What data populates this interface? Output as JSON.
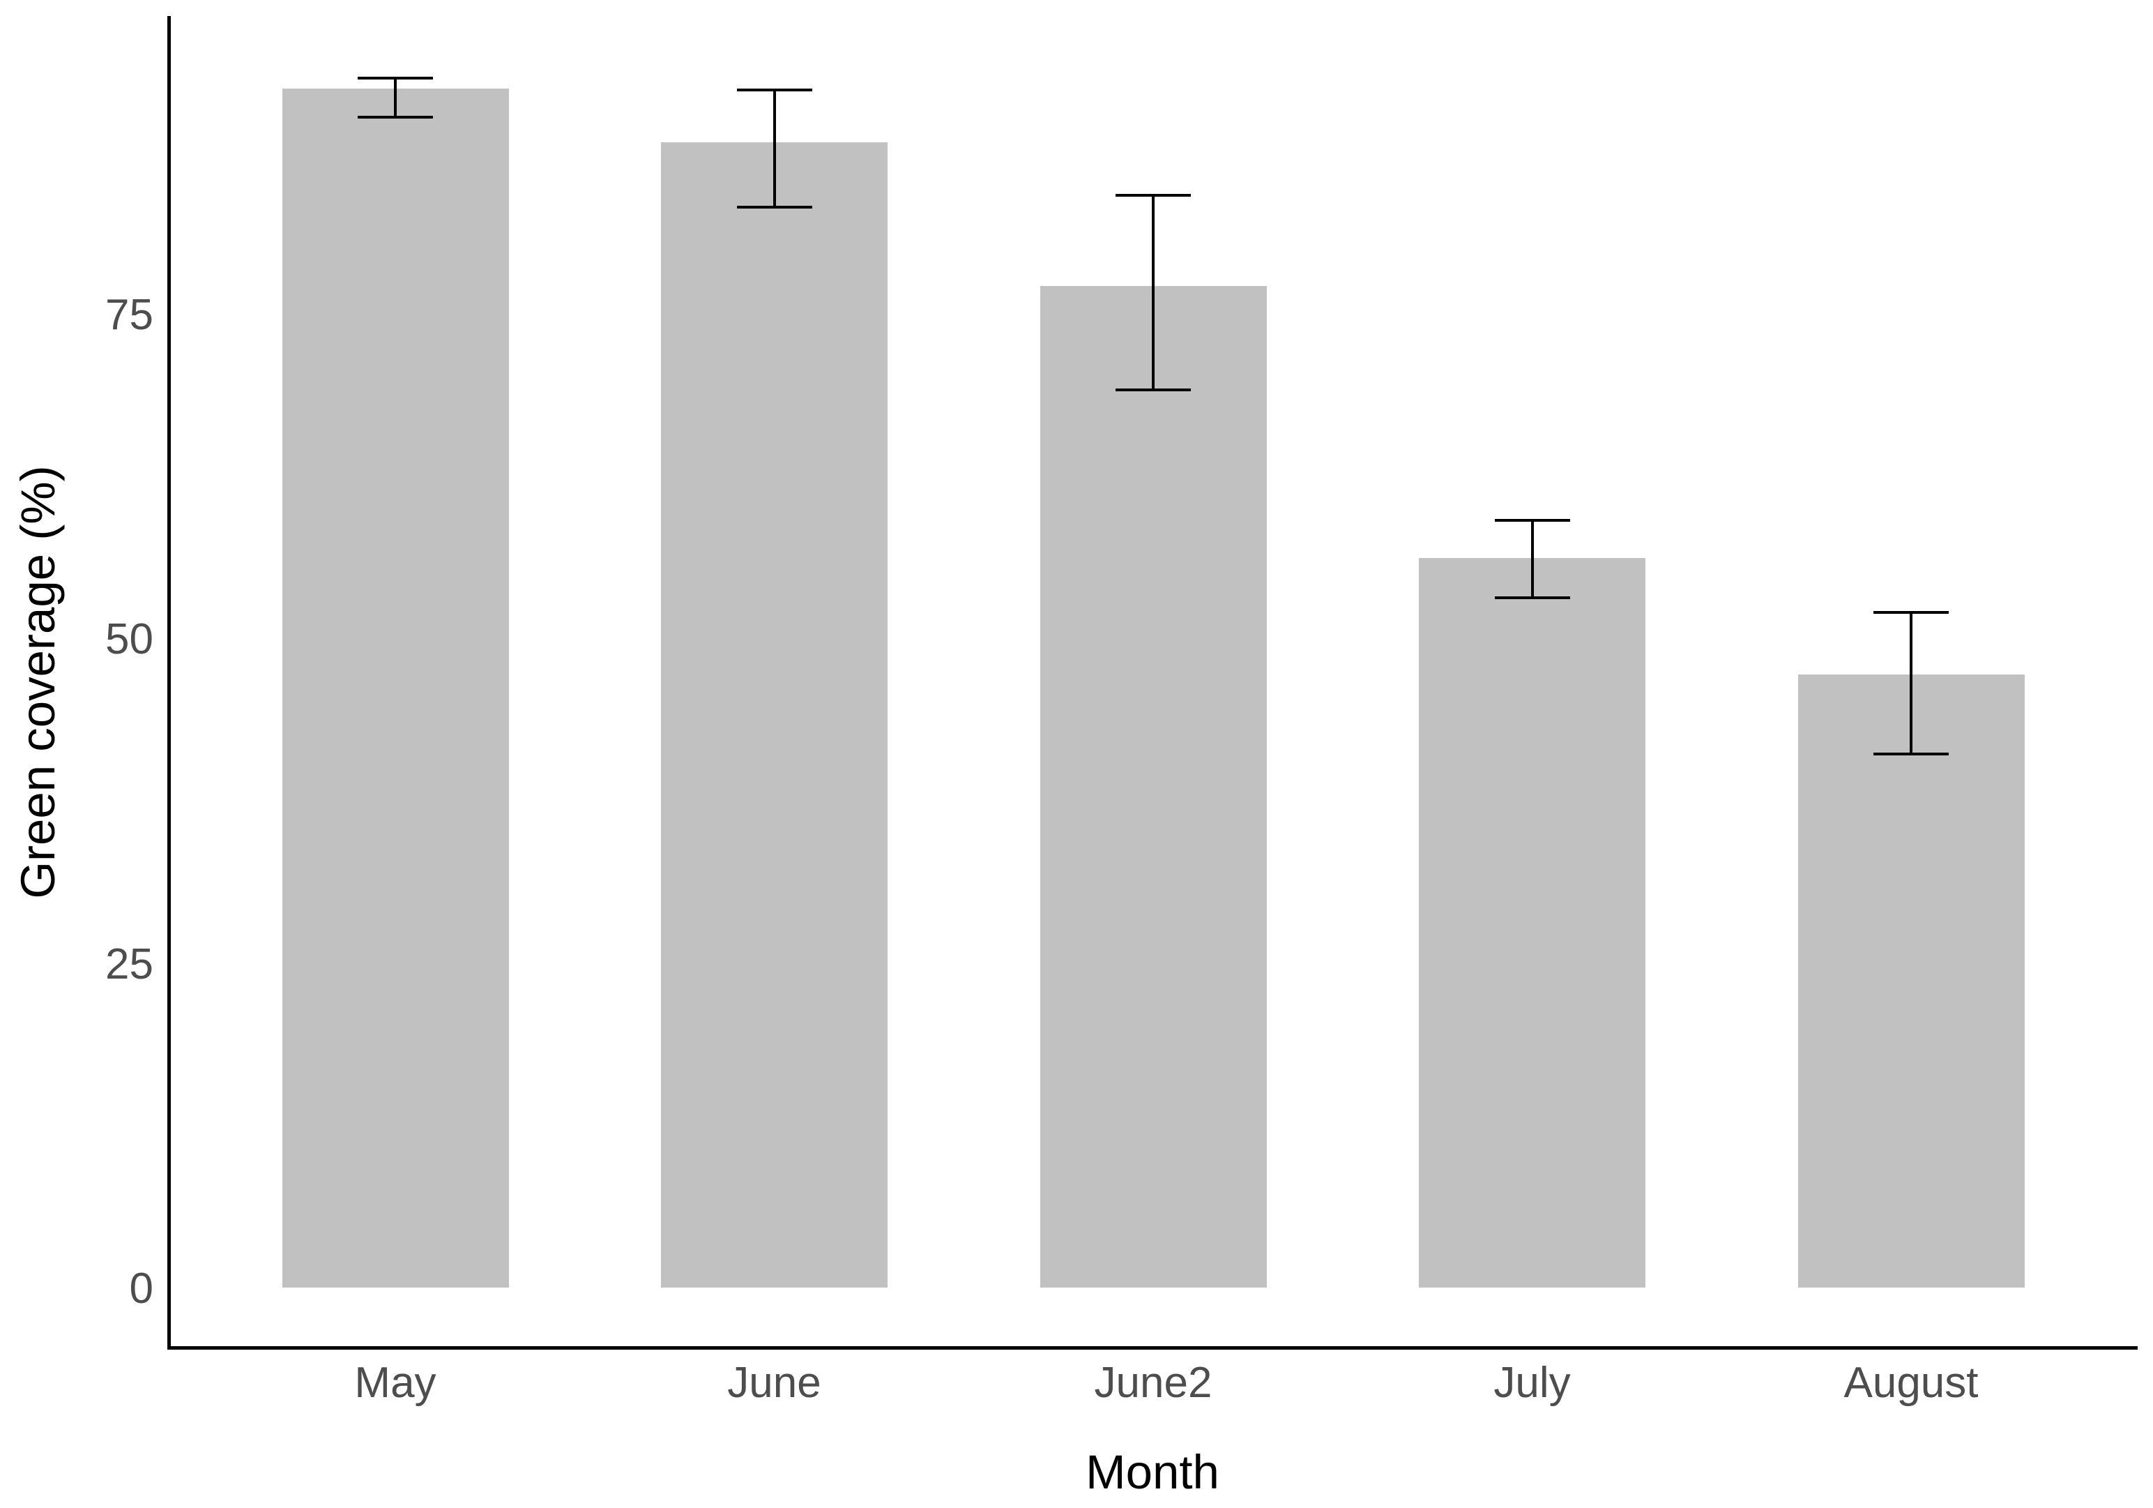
{
  "chart_data": {
    "type": "bar",
    "title": "",
    "xlabel": "Month",
    "ylabel": "Green coverage (%)",
    "categories": [
      "May",
      "June",
      "June2",
      "July",
      "August"
    ],
    "values": [
      92.3,
      88.2,
      77.1,
      56.2,
      47.2
    ],
    "error_low": [
      90.1,
      83.2,
      69.1,
      53.1,
      41.1
    ],
    "error_high": [
      93.1,
      92.2,
      84.1,
      59.1,
      52.0
    ],
    "yticks": [
      0,
      25,
      50,
      75
    ],
    "ylim": [
      -4.5,
      98
    ],
    "grid": "off",
    "legend": "none",
    "error_bar_style": "caps",
    "colors": {
      "bar_fill": "#c1c1c1",
      "error_bar": "#000000",
      "axis_line": "#000000",
      "tick_label": "#4d4d4d",
      "axis_title": "#000000",
      "background": "#ffffff"
    }
  }
}
